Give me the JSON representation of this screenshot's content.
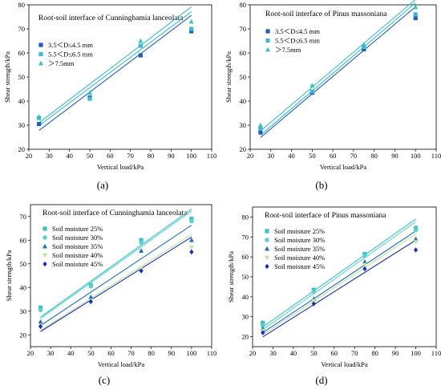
{
  "figure_labels": [
    "(a)",
    "(b)",
    "(c)",
    "(d)"
  ],
  "colors": {
    "series_1": "#1f5fb8",
    "series_2": "#3fb6d4",
    "series_3": "#36c0c0",
    "moisture_25": "#3cc0c6",
    "moisture_30": "#5ed0d2",
    "moisture_35": "#1f6ec0",
    "moisture_40": "#bde2a0",
    "moisture_45": "#1a2fb8"
  },
  "chart_data": [
    {
      "type": "scatter",
      "title": "Root-soil interface of Cunninghamia lanceolata",
      "xlabel": "Vertical load/kPa",
      "ylabel": "Shear strength/kPa",
      "xlim": [
        20,
        110
      ],
      "ylim": [
        20,
        80
      ],
      "xticks": [
        "20",
        "30",
        "40",
        "50",
        "60",
        "70",
        "80",
        "90",
        "100",
        "110"
      ],
      "yticks": [
        "20",
        "30",
        "40",
        "50",
        "60",
        "70",
        "80"
      ],
      "x": [
        25,
        50,
        75,
        100
      ],
      "series": [
        {
          "name": "3.5＜D≤4.5 mm",
          "marker": "square",
          "color": "#1f5fb8",
          "values": [
            30.5,
            41.5,
            59,
            69
          ],
          "fit": [
            27.8,
            75.6
          ]
        },
        {
          "name": "5.5＜D≤6.5 mm",
          "marker": "square",
          "color": "#3fb6d4",
          "values": [
            33,
            41,
            63,
            70
          ],
          "fit": [
            29.8,
            77.1
          ]
        },
        {
          "name": "＞7.5mm",
          "marker": "triangle",
          "color": "#36c0c0",
          "values": [
            33.5,
            43.5,
            65,
            73
          ],
          "fit": [
            31.0,
            79.2
          ]
        }
      ]
    },
    {
      "type": "scatter",
      "title": "Root-soil interface of Pinus massoniana",
      "xlabel": "Vertical load/kPa",
      "ylabel": "Shear strength/kPa",
      "xlim": [
        20,
        110
      ],
      "ylim": [
        20,
        80
      ],
      "xticks": [
        "20",
        "30",
        "40",
        "50",
        "60",
        "70",
        "80",
        "90",
        "100",
        "110"
      ],
      "yticks": [
        "20",
        "30",
        "40",
        "50",
        "60",
        "70",
        "80"
      ],
      "x": [
        25,
        50,
        75,
        100
      ],
      "series": [
        {
          "name": "3.5＜D≤4.5 mm",
          "marker": "square",
          "color": "#1f5fb8",
          "values": [
            27,
            43.5,
            61.5,
            74.5
          ],
          "fit": [
            24.9,
            79.2
          ]
        },
        {
          "name": "5.5＜D≤6.5 mm",
          "marker": "square",
          "color": "#3fb6d4",
          "values": [
            28.5,
            44,
            62.5,
            76
          ],
          "fit": [
            25.9,
            80.8
          ]
        },
        {
          "name": "＞7.5mm",
          "marker": "triangle",
          "color": "#36c0c0",
          "values": [
            30,
            46.5,
            63.5,
            79
          ],
          "fit": [
            27.6,
            82.2
          ]
        }
      ]
    },
    {
      "type": "scatter",
      "title": "Root-soil interface of Cunninghamia lanceolata",
      "xlabel": "Vertical load/kPa",
      "ylabel": "Shear strength/kPa",
      "xlim": [
        20,
        110
      ],
      "ylim": [
        15,
        75
      ],
      "xticks": [
        "20",
        "30",
        "40",
        "50",
        "60",
        "70",
        "80",
        "90",
        "100",
        "110"
      ],
      "yticks": [
        "20",
        "30",
        "40",
        "50",
        "60",
        "70"
      ],
      "x": [
        25,
        50,
        75,
        100
      ],
      "series": [
        {
          "name": "Soil moisture 25%",
          "marker": "square",
          "color": "#3cc0c6",
          "values": [
            31.5,
            41,
            60,
            69
          ],
          "fit": [
            27.5,
            73.1
          ]
        },
        {
          "name": "Soil moisture 30%",
          "marker": "circle",
          "color": "#5ed0d2",
          "values": [
            30.5,
            40.5,
            59,
            68
          ],
          "fit": [
            26.9,
            72.3
          ]
        },
        {
          "name": "Soil moisture 35%",
          "marker": "triangle",
          "color": "#1f6ec0",
          "values": [
            25.5,
            36,
            55.5,
            60
          ],
          "fit": [
            23.9,
            66.3
          ]
        },
        {
          "name": "Soil moisture 40%",
          "marker": "triangle-down",
          "color": "#bde2a0",
          "values": [
            24,
            34.5,
            47.5,
            57
          ],
          "fit": [
            21.9,
            62.4
          ]
        },
        {
          "name": "Soil moisture 45%",
          "marker": "diamond",
          "color": "#1a2fb8",
          "values": [
            23.5,
            34,
            47,
            55
          ],
          "fit": [
            21.4,
            61.3
          ]
        }
      ]
    },
    {
      "type": "scatter",
      "title": "Root-soil interface of Pinus massoniana",
      "xlabel": "Vertical load/kPa",
      "ylabel": "Shear strength/kPa",
      "xlim": [
        20,
        110
      ],
      "ylim": [
        15,
        85
      ],
      "xticks": [
        "20",
        "30",
        "40",
        "50",
        "60",
        "70",
        "80",
        "90",
        "100",
        "110"
      ],
      "yticks": [
        "20",
        "30",
        "40",
        "50",
        "60",
        "70",
        "80"
      ],
      "x": [
        25,
        50,
        75,
        100
      ],
      "series": [
        {
          "name": "Soil moisture 25%",
          "marker": "square",
          "color": "#3cc0c6",
          "values": [
            27,
            43.5,
            61.5,
            74.5
          ],
          "fit": [
            24.9,
            79.0
          ]
        },
        {
          "name": "Soil moisture 30%",
          "marker": "circle",
          "color": "#5ed0d2",
          "values": [
            25.5,
            42.5,
            60.5,
            73.5
          ],
          "fit": [
            23.5,
            77.6
          ]
        },
        {
          "name": "Soil moisture 35%",
          "marker": "triangle",
          "color": "#1f6ec0",
          "values": [
            24,
            39,
            57.5,
            69
          ],
          "fit": [
            22.0,
            73.0
          ]
        },
        {
          "name": "Soil moisture 40%",
          "marker": "triangle-down",
          "color": "#bde2a0",
          "values": [
            23,
            38,
            56,
            67.5
          ],
          "fit": [
            20.9,
            71.5
          ]
        },
        {
          "name": "Soil moisture 45%",
          "marker": "diamond",
          "color": "#1a2fb8",
          "values": [
            22,
            36.5,
            54,
            63.5
          ],
          "fit": [
            19.9,
            68.4
          ]
        }
      ]
    }
  ]
}
